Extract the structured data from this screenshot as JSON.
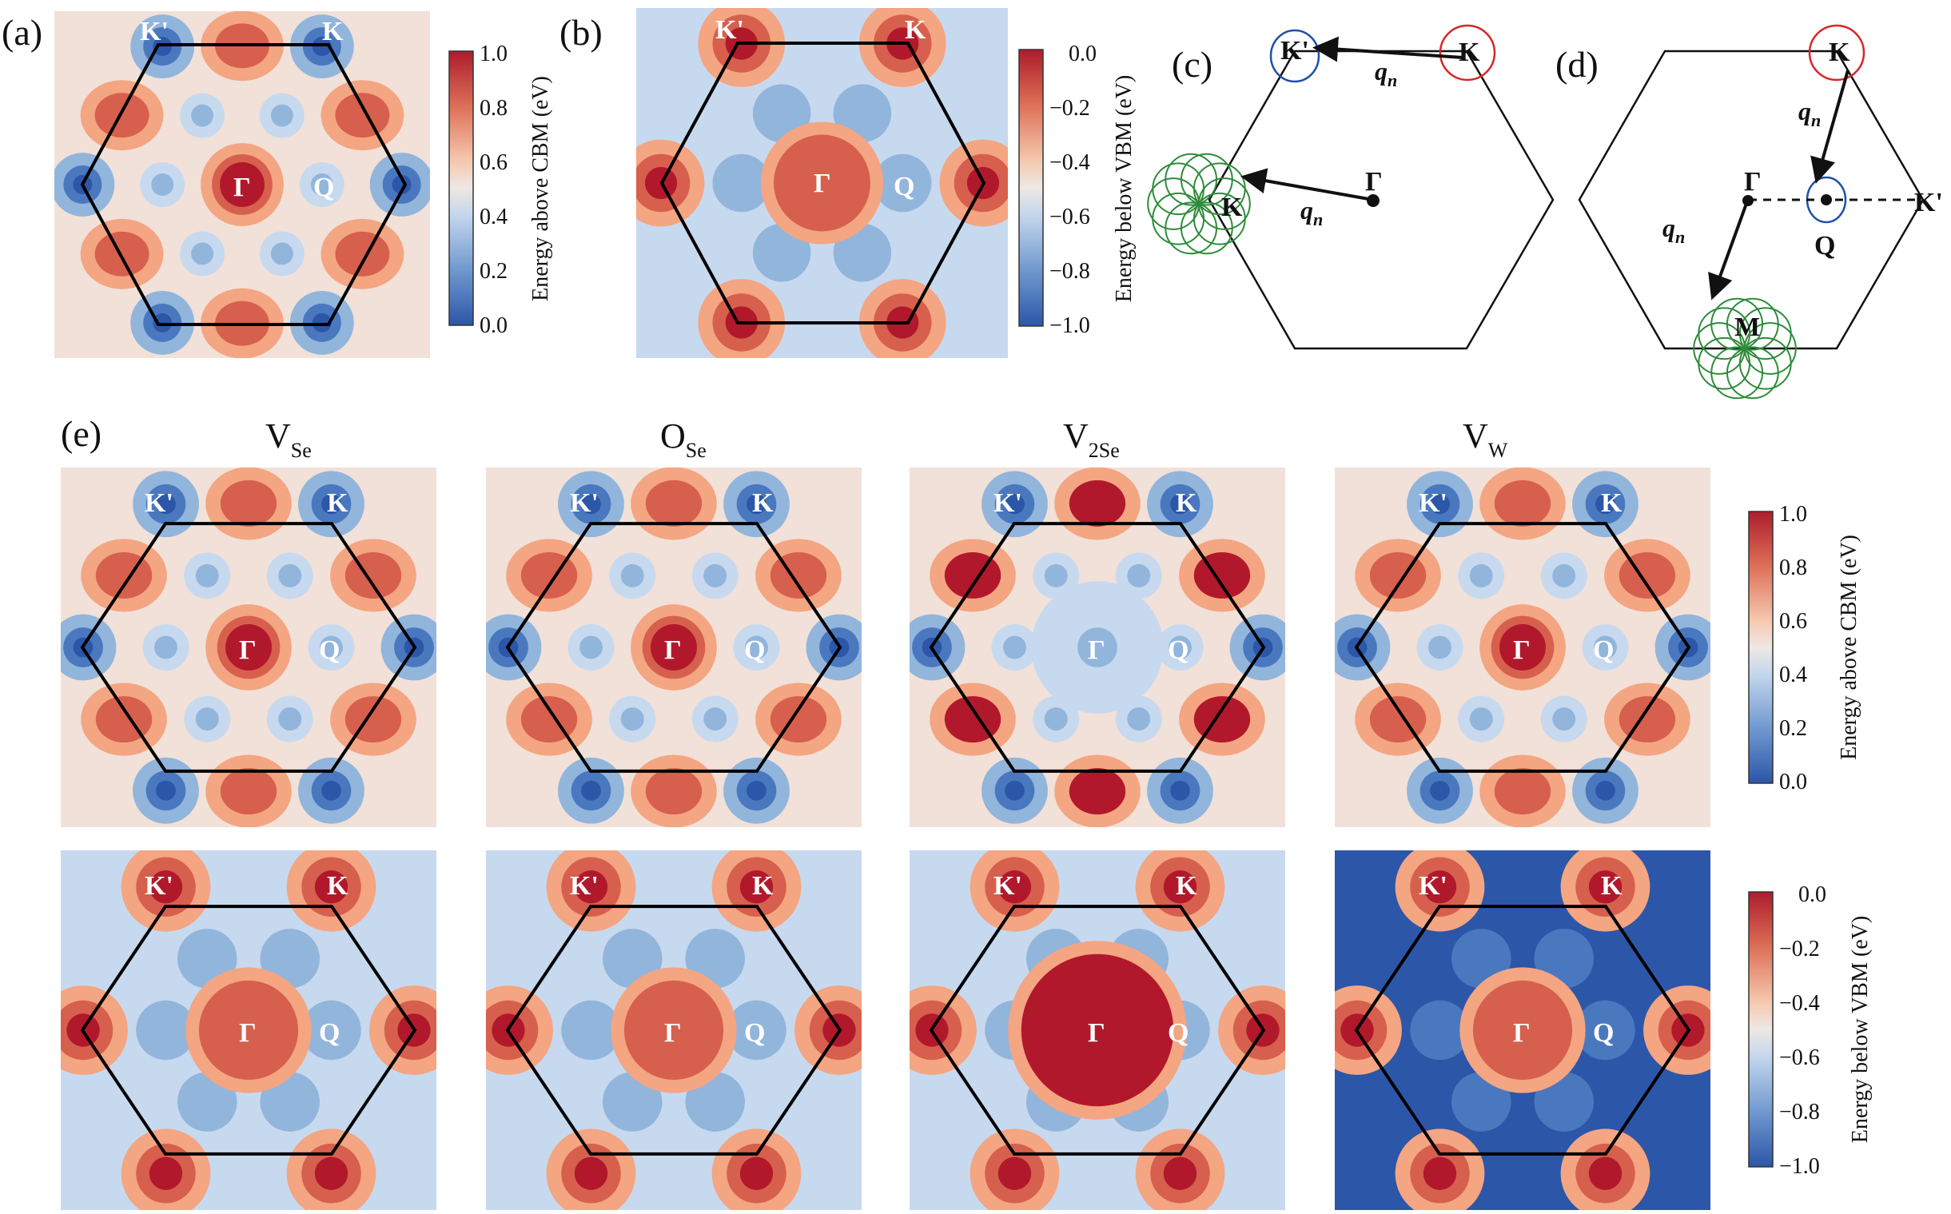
{
  "panel_labels": {
    "a": "(a)",
    "b": "(b)",
    "c": "(c)",
    "d": "(d)",
    "e": "(e)"
  },
  "symbols": {
    "gamma": "Γ",
    "q": "Q",
    "k": "K",
    "kprime": "K'",
    "m": "M",
    "qn_main": "q",
    "qn_sub": "n"
  },
  "colorbar_cbm": {
    "label": "Energy above CBM (eV)",
    "ticks": [
      "1.0",
      "0.8",
      "0.6",
      "0.4",
      "0.2",
      "0.0"
    ]
  },
  "colorbar_vbm": {
    "label": "Energy below VBM (eV)",
    "ticks": [
      "0.0",
      "−0.2",
      "−0.4",
      "−0.6",
      "−0.8",
      "−1.0"
    ]
  },
  "defect_columns": [
    {
      "main": "V",
      "sub": "Se"
    },
    {
      "main": "O",
      "sub": "Se"
    },
    {
      "main": "V",
      "sub": "2Se"
    },
    {
      "main": "V",
      "sub": "W"
    }
  ],
  "colors": {
    "deep_red": "#b2182b",
    "red": "#d6604d",
    "salmon": "#f4a582",
    "light_salmon": "#f7cdb4",
    "pale": "#f1e1d8",
    "light_blue": "#c7d9ef",
    "mid_blue": "#92b5dc",
    "blue": "#4a78bf",
    "deep_blue": "#2c56a8",
    "hexagon": "#000000",
    "circle_red": "#d62728",
    "circle_blue": "#1f4fa8",
    "circle_green": "#2e8b3a"
  }
}
